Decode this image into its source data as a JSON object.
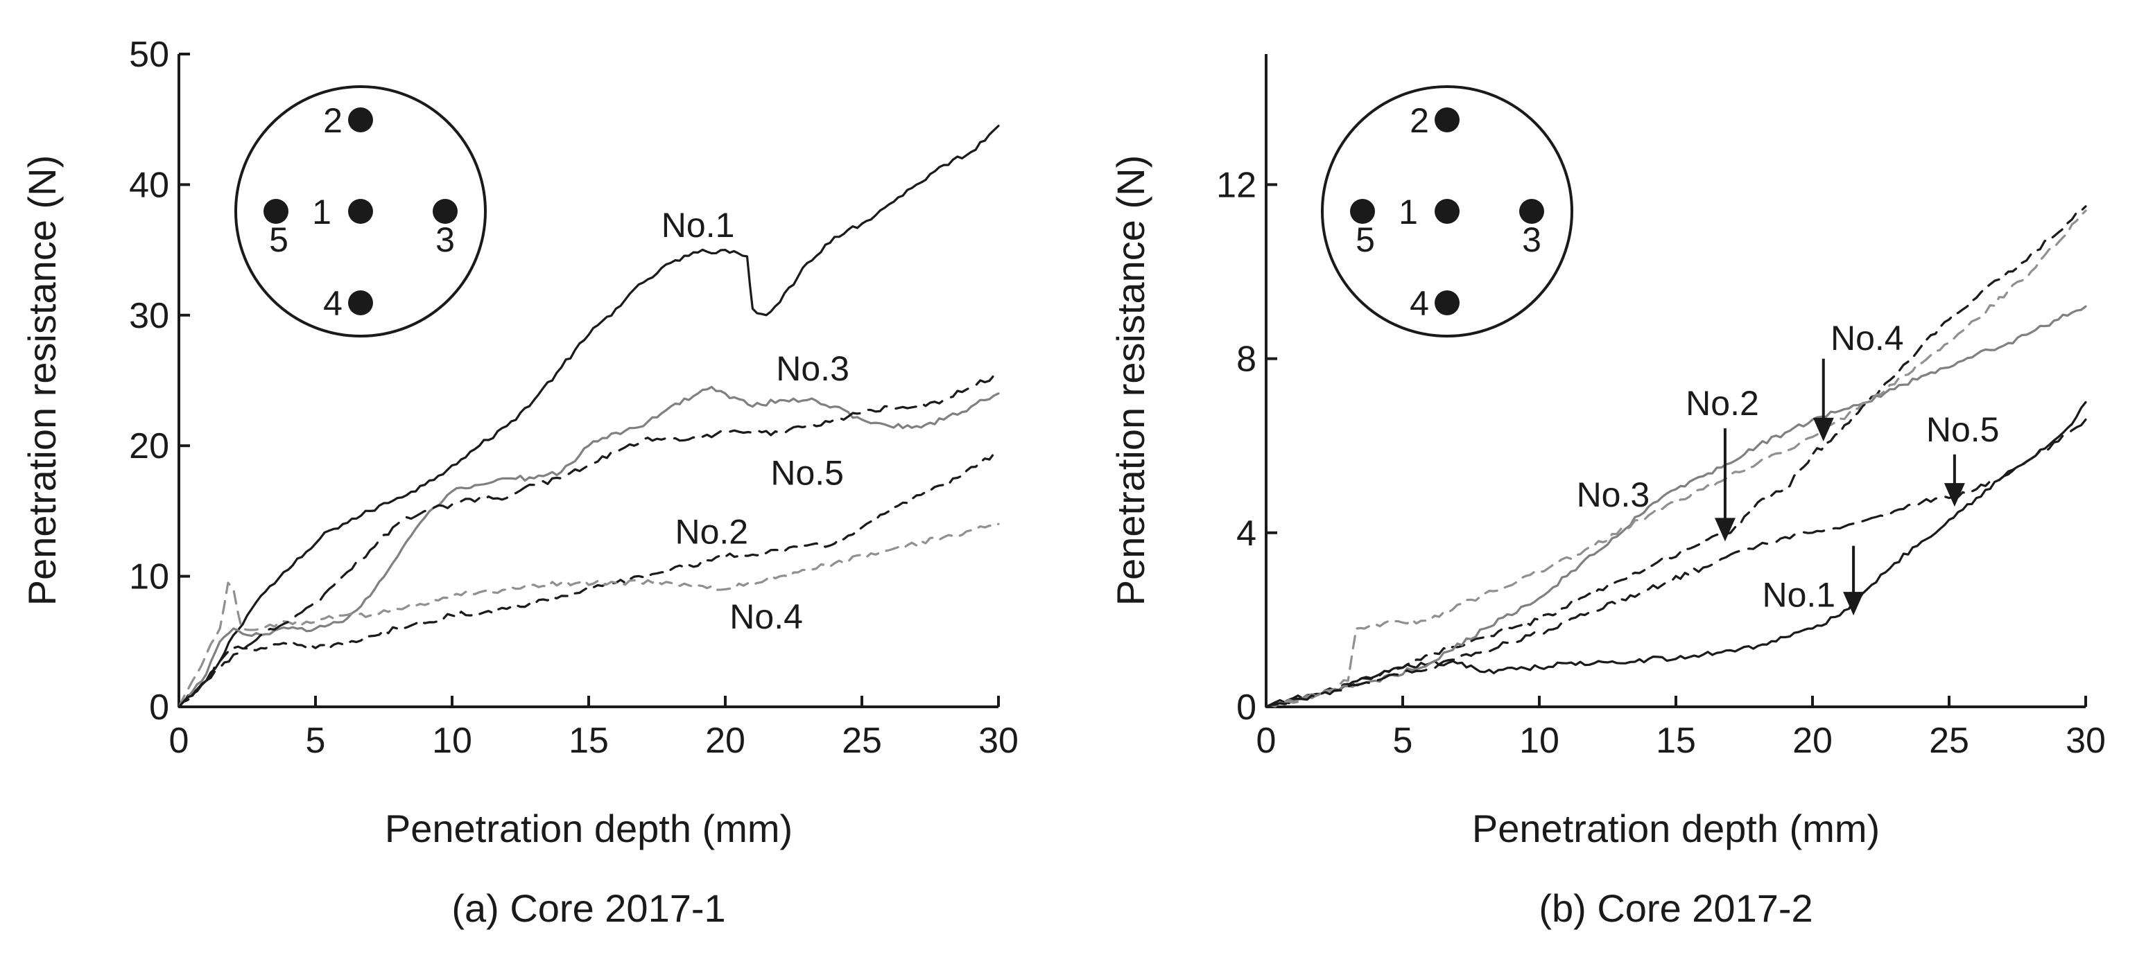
{
  "chart_data": [
    {
      "type": "line",
      "caption": "(a) Core 2017-1",
      "xlabel": "Penetration depth (mm)",
      "ylabel": "Penetration resistance (N)",
      "xlim": [
        0,
        30
      ],
      "ylim": [
        0,
        50
      ],
      "xticks": [
        0,
        5,
        10,
        15,
        20,
        25,
        30
      ],
      "yticks": [
        0,
        10,
        20,
        30,
        40,
        50
      ],
      "inset": {
        "type": "core-cross-section",
        "holes": [
          {
            "label": "1",
            "position": "center"
          },
          {
            "label": "2",
            "position": "top"
          },
          {
            "label": "3",
            "position": "right"
          },
          {
            "label": "4",
            "position": "bottom"
          },
          {
            "label": "5",
            "position": "left"
          }
        ]
      },
      "series": [
        {
          "name": "No.1",
          "label": "No.1",
          "color": "#1a1a1a",
          "dash": "solid",
          "x": [
            0,
            0.5,
            1,
            1.5,
            2,
            2.5,
            3,
            4,
            5,
            5.5,
            6,
            7,
            8,
            9,
            10,
            11,
            12,
            13,
            14,
            15,
            16,
            17,
            18,
            19,
            20,
            20.8,
            21,
            21.5,
            22,
            23,
            24,
            25,
            26,
            27,
            28,
            29,
            30
          ],
          "values": [
            0,
            1,
            2,
            3.5,
            5.5,
            7,
            8.5,
            10.5,
            12.5,
            13.5,
            14,
            15,
            16,
            17,
            18.5,
            20,
            21.5,
            23.5,
            26,
            28.5,
            30.5,
            32.5,
            34,
            34.8,
            35,
            34.5,
            30.5,
            30,
            31,
            34,
            36,
            37,
            38.5,
            40,
            41.5,
            42.5,
            44.5
          ]
        },
        {
          "name": "No.2",
          "label": "No.2",
          "color": "#1a1a1a",
          "dash": "dash",
          "x": [
            0,
            1,
            1.5,
            2,
            3,
            4,
            5,
            6,
            8,
            10,
            12,
            14,
            16,
            18,
            20,
            22,
            24,
            26,
            28,
            30
          ],
          "values": [
            0,
            2,
            3.5,
            4.5,
            4.5,
            4.8,
            4.5,
            4.8,
            6,
            7,
            7.5,
            8.5,
            9.5,
            10.5,
            11.5,
            12,
            12.5,
            15,
            17,
            19.5
          ]
        },
        {
          "name": "No.3",
          "label": "No.3",
          "color": "#808080",
          "dash": "solid",
          "x": [
            0,
            1,
            1.5,
            2,
            2.5,
            3,
            4,
            5,
            6,
            7,
            8,
            9,
            10,
            11,
            12,
            13,
            14,
            15,
            16,
            17,
            18,
            19,
            19.5,
            20,
            21,
            22,
            23,
            24,
            25,
            26,
            27,
            28,
            29,
            30
          ],
          "values": [
            0,
            2.5,
            5,
            6,
            5.5,
            5.5,
            6,
            6,
            6.5,
            8.5,
            11.5,
            14.5,
            16.5,
            17,
            17.5,
            17.5,
            18,
            20,
            21,
            21.5,
            23,
            24,
            24.5,
            24,
            23,
            23.5,
            23.5,
            23,
            22,
            21.5,
            21.5,
            22,
            23,
            24
          ]
        },
        {
          "name": "No.4",
          "label": "No.4",
          "color": "#909090",
          "dash": "dash",
          "x": [
            0,
            0.5,
            1,
            1.5,
            1.8,
            2,
            2.3,
            3,
            4,
            5,
            6,
            7,
            8,
            10,
            12,
            14,
            16,
            18,
            20,
            22,
            24,
            26,
            28,
            30
          ],
          "values": [
            0,
            2,
            4,
            6,
            9.5,
            9,
            6,
            6,
            6.5,
            6.5,
            7,
            7,
            7.5,
            8.5,
            9,
            9.5,
            9.5,
            9.5,
            9,
            10,
            11,
            12,
            13,
            14
          ]
        },
        {
          "name": "No.5",
          "label": "No.5",
          "color": "#1a1a1a",
          "dash": "dash-long",
          "x": [
            0,
            1,
            2,
            3,
            4,
            5,
            6,
            7,
            8,
            9,
            10,
            11,
            12,
            13,
            14,
            15,
            16,
            17,
            18,
            19,
            20,
            21,
            22,
            23,
            24,
            25,
            26,
            27,
            28,
            29,
            30
          ],
          "values": [
            0,
            2,
            4,
            5.5,
            6.5,
            8,
            10,
            12,
            14,
            15,
            15.5,
            16,
            16,
            17,
            17.5,
            18.5,
            19.5,
            20.5,
            20.5,
            20.5,
            21,
            21,
            21,
            21.5,
            22,
            22.5,
            23,
            23,
            23.5,
            24.5,
            25.5
          ]
        }
      ],
      "labels": [
        {
          "text": "No.1",
          "x": 19,
          "y": 36
        },
        {
          "text": "No.3",
          "x": 23.2,
          "y": 25
        },
        {
          "text": "No.5",
          "x": 23,
          "y": 17
        },
        {
          "text": "No.2",
          "x": 19.5,
          "y": 12.5
        },
        {
          "text": "No.4",
          "x": 21.5,
          "y": 6
        }
      ]
    },
    {
      "type": "line",
      "caption": "(b) Core 2017-2",
      "xlabel": "Penetration depth (mm)",
      "ylabel": "Penetration resistance (N)",
      "xlim": [
        0,
        30
      ],
      "ylim": [
        0,
        15
      ],
      "xticks": [
        0,
        5,
        10,
        15,
        20,
        25,
        30
      ],
      "yticks": [
        0,
        4,
        8,
        12
      ],
      "inset": {
        "type": "core-cross-section",
        "holes": [
          {
            "label": "1",
            "position": "center"
          },
          {
            "label": "2",
            "position": "top"
          },
          {
            "label": "3",
            "position": "right"
          },
          {
            "label": "4",
            "position": "bottom"
          },
          {
            "label": "5",
            "position": "left"
          }
        ]
      },
      "series": [
        {
          "name": "No.1",
          "label": "No.1",
          "color": "#1a1a1a",
          "dash": "solid",
          "x": [
            0,
            1,
            2,
            3,
            4,
            5,
            6,
            7,
            8,
            9,
            10,
            11,
            12,
            13,
            14,
            15,
            16,
            17,
            18,
            19,
            20,
            21,
            22,
            23,
            24,
            25,
            26,
            27,
            28,
            29,
            29.5,
            30
          ],
          "values": [
            0,
            0.2,
            0.3,
            0.5,
            0.7,
            0.9,
            1.0,
            1.0,
            0.8,
            0.9,
            0.9,
            1.0,
            1.0,
            1.0,
            1.1,
            1.1,
            1.2,
            1.3,
            1.4,
            1.6,
            1.8,
            2.1,
            2.7,
            3.3,
            3.8,
            4.3,
            4.8,
            5.3,
            5.7,
            6.2,
            6.5,
            7.0
          ]
        },
        {
          "name": "No.2",
          "label": "No.2",
          "color": "#1a1a1a",
          "dash": "dash",
          "x": [
            0,
            2,
            4,
            6,
            8,
            10,
            12,
            14,
            16,
            17,
            18,
            19,
            20,
            21,
            22,
            23,
            24,
            25,
            26,
            27,
            28,
            29,
            30
          ],
          "values": [
            0,
            0.3,
            0.7,
            1.2,
            1.6,
            2.0,
            2.6,
            3.2,
            3.8,
            4.0,
            4.7,
            5.0,
            5.8,
            6.3,
            7.0,
            7.6,
            8.3,
            8.9,
            9.4,
            9.9,
            10.4,
            10.9,
            11.5
          ]
        },
        {
          "name": "No.3",
          "label": "No.3",
          "color": "#808080",
          "dash": "solid",
          "x": [
            0,
            2,
            4,
            6,
            8,
            10,
            11,
            12,
            13,
            14,
            15,
            16,
            17,
            18,
            19,
            20,
            21,
            22,
            23,
            24,
            25,
            26,
            27,
            28,
            29,
            30
          ],
          "values": [
            0,
            0.3,
            0.6,
            1.0,
            1.8,
            2.5,
            3.0,
            3.5,
            4.0,
            4.6,
            5.0,
            5.3,
            5.6,
            6.0,
            6.3,
            6.6,
            6.8,
            7.0,
            7.3,
            7.6,
            7.8,
            8.1,
            8.3,
            8.6,
            8.9,
            9.2
          ]
        },
        {
          "name": "No.4",
          "label": "No.4",
          "color": "#909090",
          "dash": "dash",
          "x": [
            0,
            2,
            3,
            3.3,
            3.6,
            4,
            6,
            8,
            10,
            12,
            14,
            16,
            18,
            20,
            22,
            24,
            26,
            28,
            30
          ],
          "values": [
            0,
            0.3,
            0.6,
            1.8,
            1.8,
            1.9,
            2.0,
            2.6,
            3.1,
            3.7,
            4.4,
            5.0,
            5.6,
            6.2,
            7.0,
            7.9,
            8.9,
            10.0,
            11.4
          ]
        },
        {
          "name": "No.5",
          "label": "No.5",
          "color": "#1a1a1a",
          "dash": "dash-long",
          "x": [
            0,
            2,
            4,
            6,
            8,
            10,
            12,
            14,
            16,
            17,
            18,
            19,
            20,
            21,
            22,
            23,
            24,
            25,
            26,
            27,
            28,
            29,
            30
          ],
          "values": [
            0,
            0.3,
            0.6,
            0.9,
            1.3,
            1.7,
            2.2,
            2.7,
            3.2,
            3.5,
            3.7,
            3.9,
            4.0,
            4.1,
            4.3,
            4.5,
            4.7,
            4.8,
            5.0,
            5.3,
            5.7,
            6.1,
            6.6
          ]
        }
      ],
      "labels": [
        {
          "text": "No.4",
          "x": 22,
          "y": 8.2
        },
        {
          "text": "No.2",
          "x": 16.7,
          "y": 6.7
        },
        {
          "text": "No.5",
          "x": 25.5,
          "y": 6.1
        },
        {
          "text": "No.3",
          "x": 12.7,
          "y": 4.6
        },
        {
          "text": "No.1",
          "x": 19.5,
          "y": 2.3
        }
      ],
      "arrows": [
        {
          "series": "No.4",
          "from": [
            20.4,
            8.0
          ],
          "to": [
            20.4,
            6.1
          ]
        },
        {
          "series": "No.2",
          "from": [
            16.8,
            6.4
          ],
          "to": [
            16.8,
            3.8
          ]
        },
        {
          "series": "No.5",
          "from": [
            25.2,
            5.8
          ],
          "to": [
            25.2,
            4.6
          ]
        },
        {
          "series": "No.1",
          "from": [
            21.5,
            3.7
          ],
          "to": [
            21.5,
            2.1
          ]
        }
      ]
    }
  ]
}
